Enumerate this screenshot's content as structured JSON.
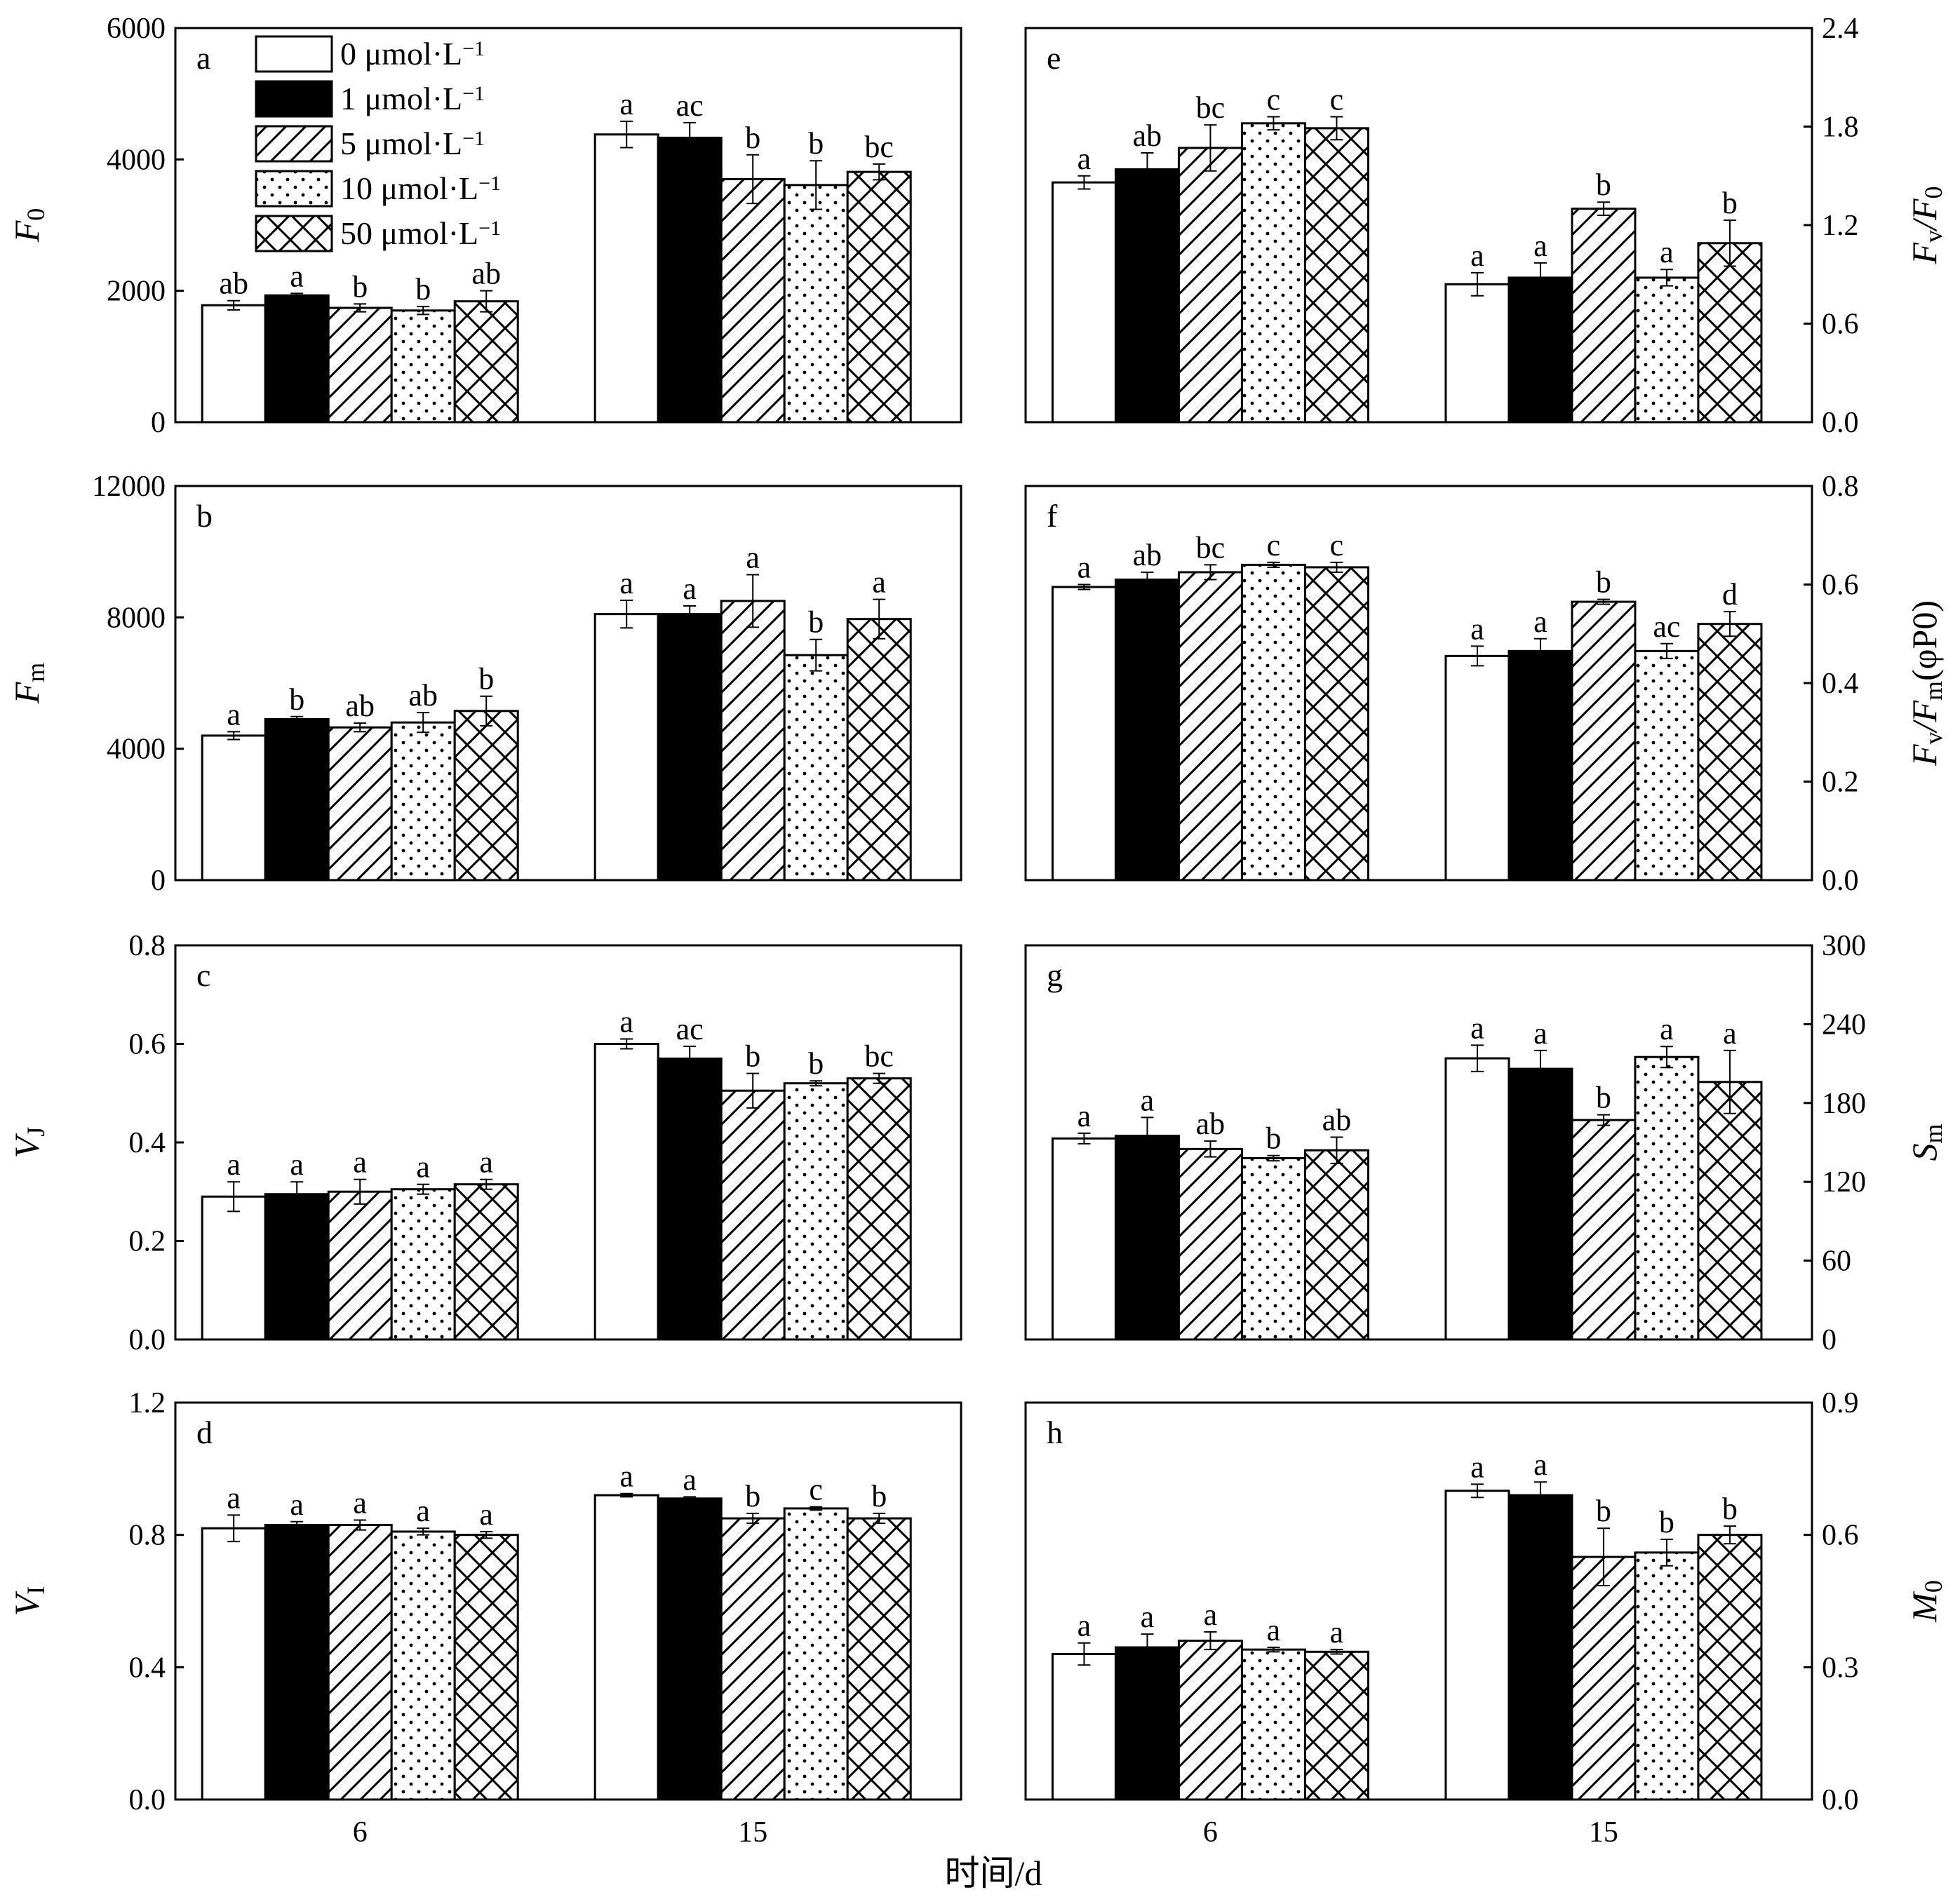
{
  "chart_data": [
    {
      "panel": "a",
      "type": "bar",
      "categories": [
        "6",
        "15"
      ],
      "ylim": [
        0,
        6000
      ],
      "yticks": [
        "0",
        "2000",
        "4000",
        "6000"
      ],
      "ylabel_main": "F",
      "ylabel_sub": "0",
      "series": [
        {
          "name": "0 μmol·L⁻¹",
          "values": [
            1780,
            4380
          ],
          "err": [
            70,
            200
          ],
          "sig": [
            "ab",
            "a"
          ]
        },
        {
          "name": "1 μmol·L⁻¹",
          "values": [
            1930,
            4330
          ],
          "err": [
            30,
            230
          ],
          "sig": [
            "a",
            "ac"
          ]
        },
        {
          "name": "5 μmol·L⁻¹",
          "values": [
            1740,
            3700
          ],
          "err": [
            60,
            370
          ],
          "sig": [
            "b",
            "b"
          ]
        },
        {
          "name": "10 μmol·L⁻¹",
          "values": [
            1700,
            3610
          ],
          "err": [
            60,
            370
          ],
          "sig": [
            "b",
            "b"
          ]
        },
        {
          "name": "50 μmol·L⁻¹",
          "values": [
            1840,
            3810
          ],
          "err": [
            160,
            120
          ],
          "sig": [
            "ab",
            "bc"
          ]
        }
      ]
    },
    {
      "panel": "b",
      "type": "bar",
      "categories": [
        "6",
        "15"
      ],
      "ylim": [
        0,
        12000
      ],
      "yticks": [
        "0",
        "4000",
        "8000",
        "12000"
      ],
      "ylabel_main": "F",
      "ylabel_sub": "m",
      "series": [
        {
          "name": "0 μmol·L⁻¹",
          "values": [
            4400,
            8100
          ],
          "err": [
            120,
            420
          ],
          "sig": [
            "a",
            "a"
          ]
        },
        {
          "name": "1 μmol·L⁻¹",
          "values": [
            4900,
            8100
          ],
          "err": [
            80,
            250
          ],
          "sig": [
            "b",
            "a"
          ]
        },
        {
          "name": "5 μmol·L⁻¹",
          "values": [
            4650,
            8500
          ],
          "err": [
            130,
            800
          ],
          "sig": [
            "ab",
            "a"
          ]
        },
        {
          "name": "10 μmol·L⁻¹",
          "values": [
            4800,
            6850
          ],
          "err": [
            300,
            480
          ],
          "sig": [
            "ab",
            "b"
          ]
        },
        {
          "name": "50 μmol·L⁻¹",
          "values": [
            5150,
            7950
          ],
          "err": [
            450,
            600
          ],
          "sig": [
            "b",
            "a"
          ]
        }
      ]
    },
    {
      "panel": "c",
      "type": "bar",
      "categories": [
        "6",
        "15"
      ],
      "ylim": [
        0,
        0.8
      ],
      "yticks": [
        "0.0",
        "0.2",
        "0.4",
        "0.6",
        "0.8"
      ],
      "ylabel_main": "V",
      "ylabel_sub": "J",
      "series": [
        {
          "name": "0 μmol·L⁻¹",
          "values": [
            0.29,
            0.6
          ],
          "err": [
            0.03,
            0.01
          ],
          "sig": [
            "a",
            "a"
          ]
        },
        {
          "name": "1 μmol·L⁻¹",
          "values": [
            0.295,
            0.57
          ],
          "err": [
            0.025,
            0.025
          ],
          "sig": [
            "a",
            "ac"
          ]
        },
        {
          "name": "5 μmol·L⁻¹",
          "values": [
            0.3,
            0.505
          ],
          "err": [
            0.025,
            0.035
          ],
          "sig": [
            "a",
            "b"
          ]
        },
        {
          "name": "10 μmol·L⁻¹",
          "values": [
            0.305,
            0.52
          ],
          "err": [
            0.01,
            0.005
          ],
          "sig": [
            "a",
            "b"
          ]
        },
        {
          "name": "50 μmol·L⁻¹",
          "values": [
            0.315,
            0.53
          ],
          "err": [
            0.01,
            0.01
          ],
          "sig": [
            "a",
            "bc"
          ]
        }
      ]
    },
    {
      "panel": "d",
      "type": "bar",
      "categories": [
        "6",
        "15"
      ],
      "ylim": [
        0,
        1.2
      ],
      "yticks": [
        "0.0",
        "0.4",
        "0.8",
        "1.2"
      ],
      "ylabel_main": "V",
      "ylabel_sub": "I",
      "series": [
        {
          "name": "0 μmol·L⁻¹",
          "values": [
            0.82,
            0.92
          ],
          "err": [
            0.04,
            0.005
          ],
          "sig": [
            "a",
            "a"
          ]
        },
        {
          "name": "1 μmol·L⁻¹",
          "values": [
            0.83,
            0.91
          ],
          "err": [
            0.01,
            0.005
          ],
          "sig": [
            "a",
            "a"
          ]
        },
        {
          "name": "5 μmol·L⁻¹",
          "values": [
            0.83,
            0.85
          ],
          "err": [
            0.015,
            0.015
          ],
          "sig": [
            "a",
            "b"
          ]
        },
        {
          "name": "10 μmol·L⁻¹",
          "values": [
            0.81,
            0.88
          ],
          "err": [
            0.01,
            0.005
          ],
          "sig": [
            "a",
            "c"
          ]
        },
        {
          "name": "50 μmol·L⁻¹",
          "values": [
            0.8,
            0.85
          ],
          "err": [
            0.01,
            0.015
          ],
          "sig": [
            "a",
            "b"
          ]
        }
      ]
    },
    {
      "panel": "e",
      "type": "bar",
      "categories": [
        "6",
        "15"
      ],
      "ylim": [
        0,
        2.4
      ],
      "yticks": [
        "0.0",
        "0.6",
        "1.2",
        "1.8",
        "2.4"
      ],
      "ylabel_main": "F",
      "ylabel_sub": "v",
      "ylabel_tail": "/F",
      "ylabel_sub2": "0",
      "series": [
        {
          "name": "0 μmol·L⁻¹",
          "values": [
            1.46,
            0.84
          ],
          "err": [
            0.04,
            0.07
          ],
          "sig": [
            "a",
            "a"
          ]
        },
        {
          "name": "1 μmol·L⁻¹",
          "values": [
            1.54,
            0.88
          ],
          "err": [
            0.1,
            0.09
          ],
          "sig": [
            "ab",
            "a"
          ]
        },
        {
          "name": "5 μmol·L⁻¹",
          "values": [
            1.67,
            1.3
          ],
          "err": [
            0.14,
            0.04
          ],
          "sig": [
            "bc",
            "b"
          ]
        },
        {
          "name": "10 μmol·L⁻¹",
          "values": [
            1.82,
            0.88
          ],
          "err": [
            0.04,
            0.05
          ],
          "sig": [
            "c",
            "a"
          ]
        },
        {
          "name": "50 μmol·L⁻¹",
          "values": [
            1.79,
            1.09
          ],
          "err": [
            0.07,
            0.14
          ],
          "sig": [
            "c",
            "b"
          ]
        }
      ]
    },
    {
      "panel": "f",
      "type": "bar",
      "categories": [
        "6",
        "15"
      ],
      "ylim": [
        0,
        0.8
      ],
      "yticks": [
        "0.0",
        "0.2",
        "0.4",
        "0.6",
        "0.8"
      ],
      "ylabel_main": "F",
      "ylabel_sub": "v",
      "ylabel_tail": "/F",
      "ylabel_sub2": "m",
      "ylabel_end": "(φP0)",
      "series": [
        {
          "name": "0 μmol·L⁻¹",
          "values": [
            0.595,
            0.455
          ],
          "err": [
            0.005,
            0.02
          ],
          "sig": [
            "a",
            "a"
          ]
        },
        {
          "name": "1 μmol·L⁻¹",
          "values": [
            0.61,
            0.465
          ],
          "err": [
            0.015,
            0.025
          ],
          "sig": [
            "ab",
            "a"
          ]
        },
        {
          "name": "5 μmol·L⁻¹",
          "values": [
            0.625,
            0.565
          ],
          "err": [
            0.015,
            0.005
          ],
          "sig": [
            "bc",
            "b"
          ]
        },
        {
          "name": "10 μmol·L⁻¹",
          "values": [
            0.64,
            0.465
          ],
          "err": [
            0.005,
            0.015
          ],
          "sig": [
            "c",
            "ac"
          ]
        },
        {
          "name": "50 μmol·L⁻¹",
          "values": [
            0.635,
            0.52
          ],
          "err": [
            0.01,
            0.025
          ],
          "sig": [
            "c",
            "d"
          ]
        }
      ]
    },
    {
      "panel": "g",
      "type": "bar",
      "categories": [
        "6",
        "15"
      ],
      "ylim": [
        0,
        300
      ],
      "yticks": [
        "0",
        "60",
        "120",
        "180",
        "240",
        "300"
      ],
      "ylabel_main": "S",
      "ylabel_sub": "m",
      "series": [
        {
          "name": "0 μmol·L⁻¹",
          "values": [
            153,
            214
          ],
          "err": [
            4,
            10
          ],
          "sig": [
            "a",
            "a"
          ]
        },
        {
          "name": "1 μmol·L⁻¹",
          "values": [
            155,
            206
          ],
          "err": [
            14,
            14
          ],
          "sig": [
            "a",
            "a"
          ]
        },
        {
          "name": "5 μmol·L⁻¹",
          "values": [
            145,
            167
          ],
          "err": [
            6,
            4
          ],
          "sig": [
            "ab",
            "b"
          ]
        },
        {
          "name": "10 μmol·L⁻¹",
          "values": [
            138,
            215
          ],
          "err": [
            2,
            8
          ],
          "sig": [
            "b",
            "a"
          ]
        },
        {
          "name": "50 μmol·L⁻¹",
          "values": [
            144,
            196
          ],
          "err": [
            10,
            24
          ],
          "sig": [
            "ab",
            "a"
          ]
        }
      ]
    },
    {
      "panel": "h",
      "type": "bar",
      "categories": [
        "6",
        "15"
      ],
      "ylim": [
        0,
        0.9
      ],
      "yticks": [
        "0.0",
        "0.3",
        "0.6",
        "0.9"
      ],
      "ylabel_main": "M",
      "ylabel_sub": "0",
      "series": [
        {
          "name": "0 μmol·L⁻¹",
          "values": [
            0.33,
            0.7
          ],
          "err": [
            0.025,
            0.015
          ],
          "sig": [
            "a",
            "a"
          ]
        },
        {
          "name": "1 μmol·L⁻¹",
          "values": [
            0.345,
            0.69
          ],
          "err": [
            0.03,
            0.03
          ],
          "sig": [
            "a",
            "a"
          ]
        },
        {
          "name": "5 μmol·L⁻¹",
          "values": [
            0.36,
            0.55
          ],
          "err": [
            0.02,
            0.065
          ],
          "sig": [
            "a",
            "b"
          ]
        },
        {
          "name": "10 μmol·L⁻¹",
          "values": [
            0.34,
            0.56
          ],
          "err": [
            0.005,
            0.03
          ],
          "sig": [
            "a",
            "b"
          ]
        },
        {
          "name": "50 μmol·L⁻¹",
          "values": [
            0.335,
            0.6
          ],
          "err": [
            0.005,
            0.02
          ],
          "sig": [
            "a",
            "b"
          ]
        }
      ]
    }
  ],
  "legend": [
    {
      "value": "0 μmol·L",
      "exp": "−1",
      "pattern": "white"
    },
    {
      "value": "1 μmol·L",
      "exp": "−1",
      "pattern": "black"
    },
    {
      "value": "5 μmol·L",
      "exp": "−1",
      "pattern": "diagonal"
    },
    {
      "value": "10 μmol·L",
      "exp": "−1",
      "pattern": "dots"
    },
    {
      "value": "50 μmol·L",
      "exp": "−1",
      "pattern": "crosshatch"
    }
  ],
  "xlabel": "时间/d",
  "colors": {
    "bar_dark": "#000000",
    "bar_light": "#ffffff",
    "stroke": "#000000"
  }
}
